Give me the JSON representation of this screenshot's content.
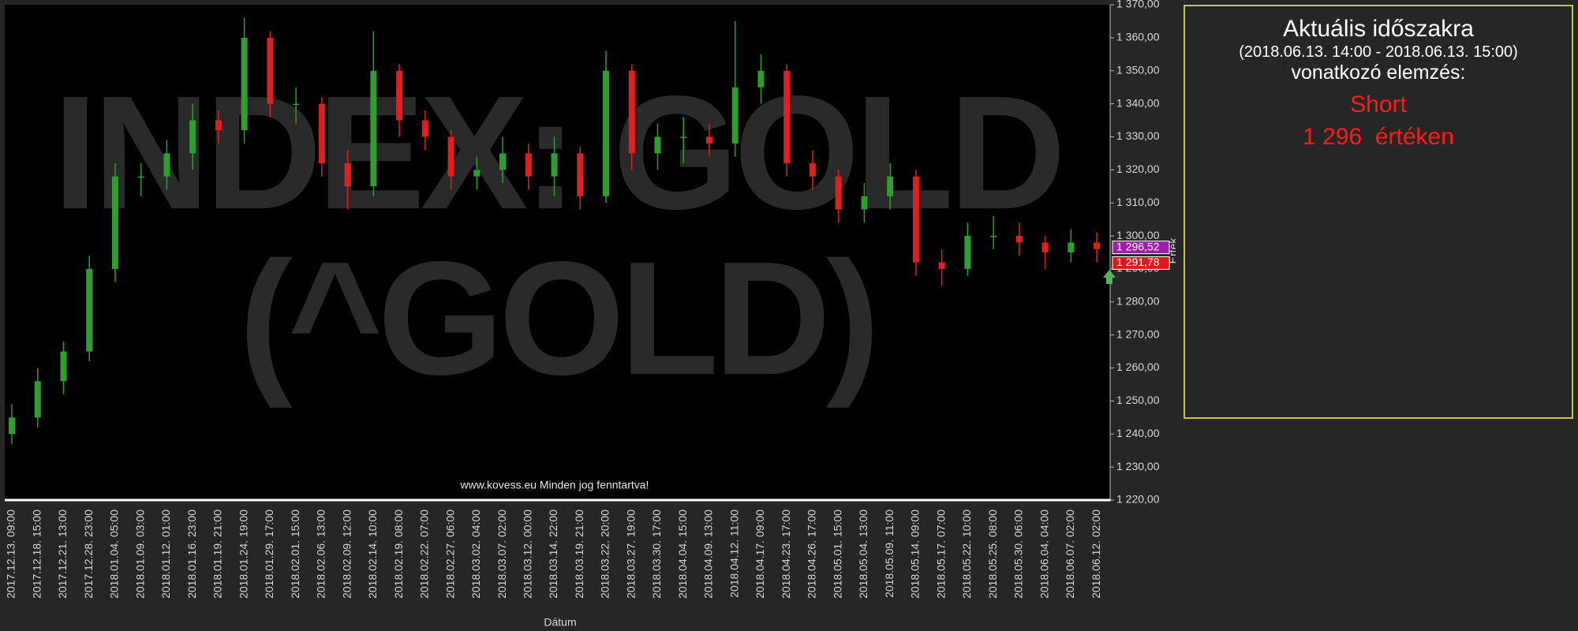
{
  "chart_data": {
    "type": "candlestick",
    "watermark": [
      "INDEX: GOLD",
      "(^GOLD)"
    ],
    "footer": "www.kovess.eu Minden jog fenntartva!",
    "x_label": "Dátum",
    "y_label": "Érték",
    "categories": [
      "2017.12.13. 09:00",
      "2017.12.18. 15:00",
      "2017.12.21. 13:00",
      "2017.12.28. 23:00",
      "2018.01.04. 05:00",
      "2018.01.09. 03:00",
      "2018.01.12. 01:00",
      "2018.01.16. 23:00",
      "2018.01.19. 21:00",
      "2018.01.24. 19:00",
      "2018.01.29. 17:00",
      "2018.02.01. 15:00",
      "2018.02.06. 13:00",
      "2018.02.09. 12:00",
      "2018.02.14. 10:00",
      "2018.02.19. 08:00",
      "2018.02.22. 07:00",
      "2018.02.27. 06:00",
      "2018.03.02. 04:00",
      "2018.03.07. 02:00",
      "2018.03.12. 00:00",
      "2018.03.14. 22:00",
      "2018.03.19. 21:00",
      "2018.03.22. 20:00",
      "2018.03.27. 19:00",
      "2018.03.30. 17:00",
      "2018.04.04. 15:00",
      "2018.04.09. 13:00",
      "2018.04.12. 11:00",
      "2018.04.17. 09:00",
      "2018.04.23. 17:00",
      "2018.04.26. 17:00",
      "2018.05.01. 15:00",
      "2018.05.04. 13:00",
      "2018.05.09. 11:00",
      "2018.05.14. 09:00",
      "2018.05.17. 07:00",
      "2018.05.22. 10:00",
      "2018.05.25. 08:00",
      "2018.05.30. 06:00",
      "2018.06.04. 04:00",
      "2018.06.07. 02:00",
      "2018.06.12. 02:00"
    ],
    "open": [
      1240,
      1245,
      1256,
      1265,
      1290,
      1318,
      1318,
      1325,
      1335,
      1332,
      1360,
      1340,
      1340,
      1322,
      1315,
      1350,
      1335,
      1330,
      1318,
      1320,
      1325,
      1318,
      1325,
      1312,
      1350,
      1325,
      1330,
      1330,
      1328,
      1345,
      1350,
      1322,
      1318,
      1308,
      1312,
      1318,
      1292,
      1290,
      1300,
      1300,
      1298,
      1295,
      1298
    ],
    "high": [
      1249,
      1260,
      1268,
      1294,
      1322,
      1322,
      1329,
      1340,
      1338,
      1366,
      1362,
      1345,
      1342,
      1326,
      1362,
      1352,
      1338,
      1332,
      1324,
      1330,
      1328,
      1330,
      1327,
      1356,
      1352,
      1334,
      1336,
      1334,
      1365,
      1355,
      1352,
      1326,
      1320,
      1316,
      1322,
      1320,
      1296,
      1304,
      1306,
      1304,
      1300,
      1302,
      1301
    ],
    "low": [
      1237,
      1242,
      1252,
      1262,
      1286,
      1312,
      1314,
      1320,
      1328,
      1328,
      1336,
      1334,
      1318,
      1308,
      1312,
      1330,
      1326,
      1314,
      1314,
      1316,
      1314,
      1312,
      1308,
      1310,
      1320,
      1320,
      1322,
      1324,
      1324,
      1340,
      1318,
      1314,
      1304,
      1304,
      1308,
      1288,
      1285,
      1288,
      1296,
      1294,
      1290,
      1292,
      1292
    ],
    "close": [
      1245,
      1256,
      1265,
      1290,
      1318,
      1318,
      1325,
      1335,
      1332,
      1360,
      1340,
      1340,
      1322,
      1315,
      1350,
      1335,
      1330,
      1318,
      1320,
      1325,
      1318,
      1325,
      1312,
      1350,
      1325,
      1330,
      1330,
      1328,
      1345,
      1350,
      1322,
      1318,
      1308,
      1312,
      1318,
      1292,
      1290,
      1300,
      1300,
      1298,
      1295,
      1298,
      1296
    ],
    "up_color": "#2e9e2e",
    "down_color": "#e02020",
    "ylim": [
      1220,
      1370
    ],
    "yticks": [
      {
        "value": 1220,
        "label": "1 220,00"
      },
      {
        "value": 1230,
        "label": "1 230,00"
      },
      {
        "value": 1240,
        "label": "1 240,00"
      },
      {
        "value": 1250,
        "label": "1 250,00"
      },
      {
        "value": 1260,
        "label": "1 260,00"
      },
      {
        "value": 1270,
        "label": "1 270,00"
      },
      {
        "value": 1280,
        "label": "1 280,00"
      },
      {
        "value": 1290,
        "label": "1 290,00"
      },
      {
        "value": 1300,
        "label": "1 300,00"
      },
      {
        "value": 1310,
        "label": "1 310,00"
      },
      {
        "value": 1320,
        "label": "1 320,00"
      },
      {
        "value": 1330,
        "label": "1 330,00"
      },
      {
        "value": 1340,
        "label": "1 340,00"
      },
      {
        "value": 1350,
        "label": "1 350,00"
      },
      {
        "value": 1360,
        "label": "1 360,00"
      },
      {
        "value": 1370,
        "label": "1 370,00"
      }
    ],
    "price_markers": [
      {
        "value": 1296.52,
        "label": "1 296,52",
        "color": "#9b1fa8"
      },
      {
        "value": 1291.78,
        "label": "1 291,78",
        "color": "#e01818"
      }
    ]
  },
  "panel": {
    "title": "Aktuális időszakra",
    "period": "(2018.06.13. 14:00 - 2018.06.13. 15:00)",
    "subtitle": "vonatkozó elemzés:",
    "signal": "Short",
    "level": "1 296  értéken"
  }
}
